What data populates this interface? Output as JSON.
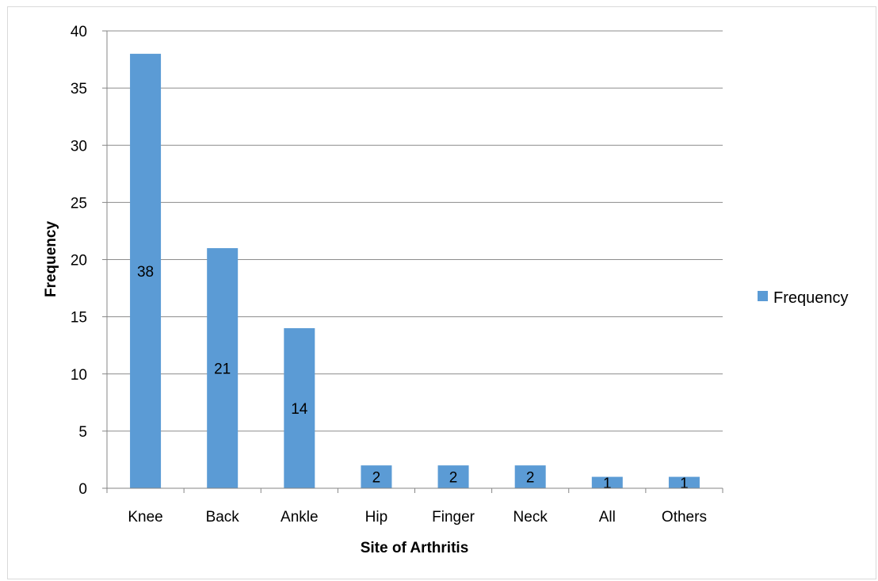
{
  "chart_data": {
    "type": "bar",
    "categories": [
      "Knee",
      "Back",
      "Ankle",
      "Hip",
      "Finger",
      "Neck",
      "All",
      "Others"
    ],
    "series": [
      {
        "name": "Frequency",
        "values": [
          38,
          21,
          14,
          2,
          2,
          2,
          1,
          1
        ]
      }
    ],
    "data_labels": [
      "38",
      "21",
      "14",
      "2",
      "2",
      "2",
      "1",
      "1"
    ],
    "xlabel": "Site of Arthritis",
    "ylabel": "Frequency",
    "ylim": [
      0,
      40
    ],
    "yticks": [
      "0",
      "5",
      "10",
      "15",
      "20",
      "25",
      "30",
      "35",
      "40"
    ],
    "grid": true,
    "legend_position": "right",
    "colors": {
      "bar": "#5b9bd5",
      "grid": "#8c8c8c",
      "axis": "#868686",
      "frame": "#d9d9d9"
    }
  }
}
